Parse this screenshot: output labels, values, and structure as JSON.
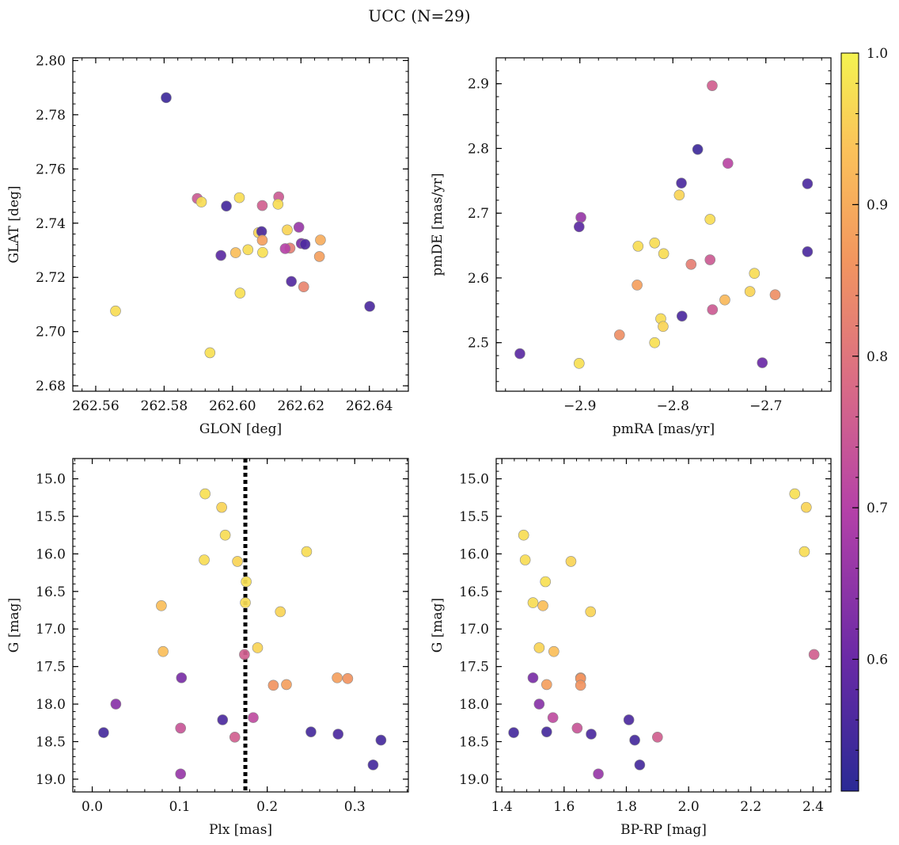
{
  "title": "UCC (N=29)",
  "colorbar": {
    "min": 0.513,
    "max": 1.0,
    "ticks": [
      0.6,
      0.7,
      0.8,
      0.9,
      1.0
    ],
    "tick_labels": [
      "0.6",
      "0.7",
      "0.8",
      "0.9",
      "1.0"
    ],
    "colormap": "plasma"
  },
  "reference_line": {
    "panel": 2,
    "x": 0.175,
    "style": "dotted",
    "color": "#000000"
  },
  "chart_data": [
    {
      "type": "scatter",
      "xlabel": "GLON [deg]",
      "ylabel": "GLAT [deg]",
      "xlim": [
        262.5533,
        262.6514
      ],
      "ylim": [
        2.678,
        2.801
      ],
      "y_inverted": false,
      "xticks": [
        262.56,
        262.58,
        262.6,
        262.62,
        262.64
      ],
      "xtick_labels": [
        "262.56",
        "262.58",
        "262.60",
        "262.62",
        "262.64"
      ],
      "yticks": [
        2.68,
        2.7,
        2.72,
        2.74,
        2.76,
        2.78,
        2.8
      ],
      "ytick_labels": [
        "2.68",
        "2.70",
        "2.72",
        "2.74",
        "2.76",
        "2.78",
        "2.80"
      ],
      "points": [
        {
          "x": 262.5806,
          "y": 2.7863,
          "c": 0.54
        },
        {
          "x": 262.5658,
          "y": 2.7076,
          "c": 0.97
        },
        {
          "x": 262.5934,
          "y": 2.6922,
          "c": 0.975
        },
        {
          "x": 262.5897,
          "y": 2.7491,
          "c": 0.75
        },
        {
          "x": 262.5909,
          "y": 2.7478,
          "c": 0.97
        },
        {
          "x": 262.5982,
          "y": 2.7463,
          "c": 0.55
        },
        {
          "x": 262.602,
          "y": 2.7494,
          "c": 0.97
        },
        {
          "x": 262.6087,
          "y": 2.7465,
          "c": 0.76
        },
        {
          "x": 262.6135,
          "y": 2.7497,
          "c": 0.75
        },
        {
          "x": 262.6133,
          "y": 2.747,
          "c": 0.97
        },
        {
          "x": 262.6194,
          "y": 2.7385,
          "c": 0.66
        },
        {
          "x": 262.616,
          "y": 2.7375,
          "c": 0.96
        },
        {
          "x": 262.6076,
          "y": 2.7365,
          "c": 0.96
        },
        {
          "x": 262.6085,
          "y": 2.7369,
          "c": 0.56
        },
        {
          "x": 262.6087,
          "y": 2.7337,
          "c": 0.88
        },
        {
          "x": 262.6201,
          "y": 2.7325,
          "c": 0.62
        },
        {
          "x": 262.6212,
          "y": 2.7322,
          "c": 0.56
        },
        {
          "x": 262.6168,
          "y": 2.7308,
          "c": 0.82
        },
        {
          "x": 262.6154,
          "y": 2.7306,
          "c": 0.7
        },
        {
          "x": 262.6257,
          "y": 2.7338,
          "c": 0.9
        },
        {
          "x": 262.6254,
          "y": 2.7277,
          "c": 0.88
        },
        {
          "x": 262.6045,
          "y": 2.7302,
          "c": 0.97
        },
        {
          "x": 262.6088,
          "y": 2.7292,
          "c": 0.975
        },
        {
          "x": 262.6009,
          "y": 2.7291,
          "c": 0.93
        },
        {
          "x": 262.5966,
          "y": 2.7281,
          "c": 0.58
        },
        {
          "x": 262.6172,
          "y": 2.7185,
          "c": 0.57
        },
        {
          "x": 262.6208,
          "y": 2.7165,
          "c": 0.83
        },
        {
          "x": 262.6022,
          "y": 2.7142,
          "c": 0.975
        },
        {
          "x": 262.6401,
          "y": 2.7093,
          "c": 0.56
        }
      ]
    },
    {
      "type": "scatter",
      "xlabel": "pmRA [mas/yr]",
      "ylabel": "pmDE [mas/yr]",
      "xlim": [
        -2.99,
        -2.63
      ],
      "ylim": [
        2.425,
        2.94
      ],
      "y_inverted": false,
      "xticks": [
        -2.9,
        -2.8,
        -2.7
      ],
      "xtick_labels": [
        "−2.9",
        "−2.8",
        "−2.7"
      ],
      "yticks": [
        2.5,
        2.6,
        2.7,
        2.8,
        2.9
      ],
      "ytick_labels": [
        "2.5",
        "2.6",
        "2.7",
        "2.8",
        "2.9"
      ],
      "points": [
        {
          "x": -2.7577,
          "y": 2.897,
          "c": 0.76
        },
        {
          "x": -2.7733,
          "y": 2.7985,
          "c": 0.54
        },
        {
          "x": -2.7408,
          "y": 2.777,
          "c": 0.71
        },
        {
          "x": -2.7908,
          "y": 2.7465,
          "c": 0.56
        },
        {
          "x": -2.6552,
          "y": 2.7455,
          "c": 0.56
        },
        {
          "x": -2.7931,
          "y": 2.728,
          "c": 0.96
        },
        {
          "x": -2.8989,
          "y": 2.6935,
          "c": 0.66
        },
        {
          "x": -2.76,
          "y": 2.6905,
          "c": 0.97
        },
        {
          "x": -2.9008,
          "y": 2.679,
          "c": 0.58
        },
        {
          "x": -2.8196,
          "y": 2.654,
          "c": 0.97
        },
        {
          "x": -2.8374,
          "y": 2.649,
          "c": 0.97
        },
        {
          "x": -2.8099,
          "y": 2.6375,
          "c": 0.97
        },
        {
          "x": -2.6552,
          "y": 2.6405,
          "c": 0.56
        },
        {
          "x": -2.76,
          "y": 2.628,
          "c": 0.75
        },
        {
          "x": -2.7804,
          "y": 2.621,
          "c": 0.82
        },
        {
          "x": -2.7123,
          "y": 2.607,
          "c": 0.97
        },
        {
          "x": -2.8384,
          "y": 2.589,
          "c": 0.88
        },
        {
          "x": -2.7171,
          "y": 2.579,
          "c": 0.96
        },
        {
          "x": -2.69,
          "y": 2.574,
          "c": 0.85
        },
        {
          "x": -2.7441,
          "y": 2.566,
          "c": 0.92
        },
        {
          "x": -2.7574,
          "y": 2.551,
          "c": 0.75
        },
        {
          "x": -2.7902,
          "y": 2.541,
          "c": 0.56
        },
        {
          "x": -2.813,
          "y": 2.537,
          "c": 0.97
        },
        {
          "x": -2.8105,
          "y": 2.525,
          "c": 0.96
        },
        {
          "x": -2.8574,
          "y": 2.512,
          "c": 0.85
        },
        {
          "x": -2.8196,
          "y": 2.5,
          "c": 0.975
        },
        {
          "x": -2.9645,
          "y": 2.483,
          "c": 0.58
        },
        {
          "x": -2.9008,
          "y": 2.468,
          "c": 0.975
        },
        {
          "x": -2.7038,
          "y": 2.469,
          "c": 0.6
        }
      ]
    },
    {
      "type": "scatter",
      "xlabel": "Plx [mas]",
      "ylabel": "G [mag]",
      "xlim": [
        -0.0222,
        0.3613
      ],
      "ylim": [
        19.17,
        14.73
      ],
      "y_inverted": true,
      "xticks": [
        0.0,
        0.1,
        0.2,
        0.3
      ],
      "xtick_labels": [
        "0.0",
        "0.1",
        "0.2",
        "0.3"
      ],
      "yticks": [
        15.0,
        15.5,
        16.0,
        16.5,
        17.0,
        17.5,
        18.0,
        18.5,
        19.0
      ],
      "ytick_labels": [
        "15.0",
        "15.5",
        "16.0",
        "16.5",
        "17.0",
        "17.5",
        "18.0",
        "18.5",
        "19.0"
      ],
      "points": [
        {
          "x": 0.129,
          "y": 15.2,
          "c": 0.975
        },
        {
          "x": 0.148,
          "y": 15.38,
          "c": 0.96
        },
        {
          "x": 0.152,
          "y": 15.75,
          "c": 0.97
        },
        {
          "x": 0.245,
          "y": 15.97,
          "c": 0.97
        },
        {
          "x": 0.128,
          "y": 16.08,
          "c": 0.97
        },
        {
          "x": 0.166,
          "y": 16.1,
          "c": 0.96
        },
        {
          "x": 0.176,
          "y": 16.37,
          "c": 0.975
        },
        {
          "x": 0.175,
          "y": 16.65,
          "c": 0.97
        },
        {
          "x": 0.079,
          "y": 16.69,
          "c": 0.93
        },
        {
          "x": 0.215,
          "y": 16.77,
          "c": 0.96
        },
        {
          "x": 0.189,
          "y": 17.25,
          "c": 0.96
        },
        {
          "x": 0.081,
          "y": 17.3,
          "c": 0.93
        },
        {
          "x": 0.174,
          "y": 17.34,
          "c": 0.76
        },
        {
          "x": 0.102,
          "y": 17.65,
          "c": 0.62
        },
        {
          "x": 0.28,
          "y": 17.65,
          "c": 0.88
        },
        {
          "x": 0.292,
          "y": 17.66,
          "c": 0.86
        },
        {
          "x": 0.207,
          "y": 17.75,
          "c": 0.86
        },
        {
          "x": 0.222,
          "y": 17.74,
          "c": 0.88
        },
        {
          "x": 0.027,
          "y": 18.0,
          "c": 0.64
        },
        {
          "x": 0.184,
          "y": 18.18,
          "c": 0.72
        },
        {
          "x": 0.149,
          "y": 18.21,
          "c": 0.56
        },
        {
          "x": 0.101,
          "y": 18.32,
          "c": 0.74
        },
        {
          "x": 0.013,
          "y": 18.38,
          "c": 0.55
        },
        {
          "x": 0.25,
          "y": 18.37,
          "c": 0.55
        },
        {
          "x": 0.281,
          "y": 18.4,
          "c": 0.56
        },
        {
          "x": 0.163,
          "y": 18.44,
          "c": 0.76
        },
        {
          "x": 0.33,
          "y": 18.48,
          "c": 0.55
        },
        {
          "x": 0.321,
          "y": 18.81,
          "c": 0.55
        },
        {
          "x": 0.101,
          "y": 18.93,
          "c": 0.66
        }
      ]
    },
    {
      "type": "scatter",
      "xlabel": "BP-RP [mag]",
      "ylabel": "G [mag]",
      "xlim": [
        1.3818,
        2.4573
      ],
      "ylim": [
        19.17,
        14.73
      ],
      "y_inverted": true,
      "xticks": [
        1.4,
        1.6,
        1.8,
        2.0,
        2.2,
        2.4
      ],
      "xtick_labels": [
        "1.4",
        "1.6",
        "1.8",
        "2.0",
        "2.2",
        "2.4"
      ],
      "yticks": [
        15.0,
        15.5,
        16.0,
        16.5,
        17.0,
        17.5,
        18.0,
        18.5,
        19.0
      ],
      "ytick_labels": [
        "15.0",
        "15.5",
        "16.0",
        "16.5",
        "17.0",
        "17.5",
        "18.0",
        "18.5",
        "19.0"
      ],
      "points": [
        {
          "x": 2.341,
          "y": 15.2,
          "c": 0.975
        },
        {
          "x": 2.378,
          "y": 15.38,
          "c": 0.96
        },
        {
          "x": 1.47,
          "y": 15.75,
          "c": 0.97
        },
        {
          "x": 2.372,
          "y": 15.97,
          "c": 0.97
        },
        {
          "x": 1.475,
          "y": 16.08,
          "c": 0.97
        },
        {
          "x": 1.622,
          "y": 16.1,
          "c": 0.96
        },
        {
          "x": 1.54,
          "y": 16.37,
          "c": 0.975
        },
        {
          "x": 1.5,
          "y": 16.65,
          "c": 0.97
        },
        {
          "x": 1.532,
          "y": 16.69,
          "c": 0.93
        },
        {
          "x": 1.685,
          "y": 16.77,
          "c": 0.96
        },
        {
          "x": 1.52,
          "y": 17.25,
          "c": 0.96
        },
        {
          "x": 1.567,
          "y": 17.3,
          "c": 0.93
        },
        {
          "x": 2.403,
          "y": 17.34,
          "c": 0.76
        },
        {
          "x": 1.5,
          "y": 17.65,
          "c": 0.62
        },
        {
          "x": 1.653,
          "y": 17.65,
          "c": 0.88
        },
        {
          "x": 1.653,
          "y": 17.66,
          "c": 0.86
        },
        {
          "x": 1.653,
          "y": 17.75,
          "c": 0.86
        },
        {
          "x": 1.544,
          "y": 17.74,
          "c": 0.88
        },
        {
          "x": 1.52,
          "y": 18.0,
          "c": 0.64
        },
        {
          "x": 1.564,
          "y": 18.18,
          "c": 0.72
        },
        {
          "x": 1.808,
          "y": 18.21,
          "c": 0.56
        },
        {
          "x": 1.642,
          "y": 18.32,
          "c": 0.74
        },
        {
          "x": 1.438,
          "y": 18.38,
          "c": 0.55
        },
        {
          "x": 1.544,
          "y": 18.37,
          "c": 0.55
        },
        {
          "x": 1.687,
          "y": 18.4,
          "c": 0.56
        },
        {
          "x": 1.9,
          "y": 18.44,
          "c": 0.76
        },
        {
          "x": 1.827,
          "y": 18.48,
          "c": 0.55
        },
        {
          "x": 1.843,
          "y": 18.81,
          "c": 0.55
        },
        {
          "x": 1.71,
          "y": 18.93,
          "c": 0.66
        }
      ]
    }
  ]
}
